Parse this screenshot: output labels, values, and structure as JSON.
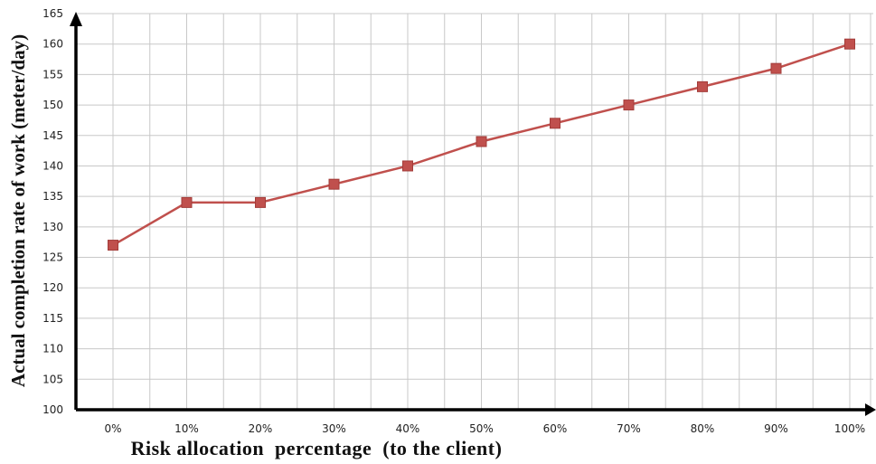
{
  "chart_data": {
    "type": "line",
    "title": "",
    "xlabel": "Risk allocation  percentage  (to the client)",
    "ylabel": "Actual completion rate of work (meter/day)",
    "categories": [
      "0%",
      "10%",
      "20%",
      "30%",
      "40%",
      "50%",
      "60%",
      "70%",
      "80%",
      "90%",
      "100%"
    ],
    "series": [
      {
        "values": [
          127,
          134,
          134,
          137,
          140,
          144,
          147,
          150,
          153,
          156,
          160
        ],
        "color": "#c0504d",
        "marker": "square"
      }
    ],
    "yticks": [
      "100",
      "105",
      "110",
      "115",
      "120",
      "125",
      "130",
      "135",
      "140",
      "145",
      "150",
      "155",
      "160",
      "165"
    ],
    "ylim": [
      100,
      165
    ],
    "grid": true,
    "legend": "none"
  }
}
